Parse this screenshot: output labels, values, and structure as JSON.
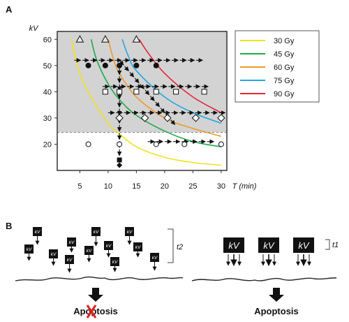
{
  "panels": {
    "a_label": "A",
    "b_label": "B"
  },
  "chart_data": {
    "type": "line",
    "ylabel": "kV",
    "xlabel": "T (min)",
    "xlim": [
      1,
      31
    ],
    "ylim": [
      10,
      63
    ],
    "x_ticks": [
      5,
      10,
      15,
      20,
      25,
      30
    ],
    "y_ticks": [
      20,
      30,
      40,
      50,
      60
    ],
    "threshold_kV": 24.5,
    "colors": {
      "30 Gy": "#f2e21a",
      "45 Gy": "#1eaa4a",
      "60 Gy": "#ee9a2c",
      "75 Gy": "#22a8e0",
      "90 Gy": "#e0283a",
      "shade": "#d3d3d3"
    },
    "series": [
      {
        "name": "30 Gy",
        "points": [
          [
            3.5,
            60
          ],
          [
            5,
            47
          ],
          [
            7,
            38
          ],
          [
            10,
            28
          ],
          [
            12,
            24
          ],
          [
            15,
            19
          ],
          [
            20,
            15
          ],
          [
            25,
            13
          ],
          [
            30,
            12
          ]
        ]
      },
      {
        "name": "45 Gy",
        "points": [
          [
            7,
            60
          ],
          [
            8,
            52
          ],
          [
            10,
            43
          ],
          [
            12,
            37
          ],
          [
            15,
            31
          ],
          [
            20,
            25
          ],
          [
            25,
            21
          ],
          [
            30,
            19
          ]
        ]
      },
      {
        "name": "60 Gy",
        "points": [
          [
            10,
            60
          ],
          [
            11,
            52
          ],
          [
            12,
            47
          ],
          [
            15,
            38
          ],
          [
            20,
            30
          ],
          [
            25,
            26
          ],
          [
            30,
            23
          ]
        ]
      },
      {
        "name": "75 Gy",
        "points": [
          [
            12.5,
            60
          ],
          [
            13.5,
            54
          ],
          [
            15,
            48
          ],
          [
            20,
            38
          ],
          [
            25,
            32
          ],
          [
            30,
            28
          ]
        ]
      },
      {
        "name": "90 Gy",
        "points": [
          [
            15.5,
            60
          ],
          [
            17,
            55
          ],
          [
            20,
            47
          ],
          [
            25,
            38
          ],
          [
            30,
            32
          ]
        ]
      }
    ],
    "markers": {
      "triangles": [
        [
          5,
          60
        ],
        [
          9.5,
          60
        ],
        [
          15,
          60
        ]
      ],
      "filled_circles": [
        [
          6.5,
          50
        ],
        [
          9.5,
          50
        ],
        [
          12,
          50
        ],
        [
          15,
          50
        ],
        [
          18.5,
          50
        ]
      ],
      "squares": [
        [
          9.5,
          40
        ],
        [
          12,
          40
        ],
        [
          15,
          40
        ],
        [
          18.5,
          40
        ],
        [
          22,
          40
        ],
        [
          27,
          40
        ]
      ],
      "diamonds": [
        [
          12,
          30
        ],
        [
          16.5,
          30
        ],
        [
          20.5,
          30
        ],
        [
          25.5,
          30
        ],
        [
          30,
          30
        ]
      ],
      "open_circles": [
        [
          6.5,
          20
        ],
        [
          12,
          20
        ],
        [
          18.5,
          20
        ],
        [
          23.5,
          20
        ],
        [
          30,
          20
        ]
      ],
      "filled_square": [
        [
          12,
          14
        ]
      ],
      "filled_diamond": [
        [
          12,
          12
        ]
      ]
    },
    "arrows": [
      [
        [
          4,
          52
        ],
        [
          27,
          52
        ]
      ],
      [
        [
          9,
          42
        ],
        [
          28,
          42
        ]
      ],
      [
        [
          10,
          32
        ],
        [
          31,
          32
        ]
      ],
      [
        [
          17,
          21
        ],
        [
          29,
          21
        ]
      ],
      [
        [
          12,
          49
        ],
        [
          12,
          15
        ]
      ],
      [
        [
          12,
          52
        ],
        [
          22,
          27
        ]
      ]
    ]
  },
  "legend": {
    "entries": [
      {
        "label": "30 Gy",
        "color": "#f2e21a"
      },
      {
        "label": "45 Gy",
        "color": "#1eaa4a"
      },
      {
        "label": "60 Gy",
        "color": "#ee9a2c"
      },
      {
        "label": "75 Gy",
        "color": "#22a8e0"
      },
      {
        "label": "90 Gy",
        "color": "#e0283a"
      }
    ]
  },
  "panel_b": {
    "small_box_text": "kV",
    "large_box_text": "kV",
    "left_time_label": "t2",
    "right_time_label": "t1",
    "left_outcome_prefix": "Apop",
    "left_outcome_crossed": "t",
    "left_outcome_suffix": "osis",
    "right_outcome": "Apoptosis",
    "cross_color": "#e02020"
  }
}
